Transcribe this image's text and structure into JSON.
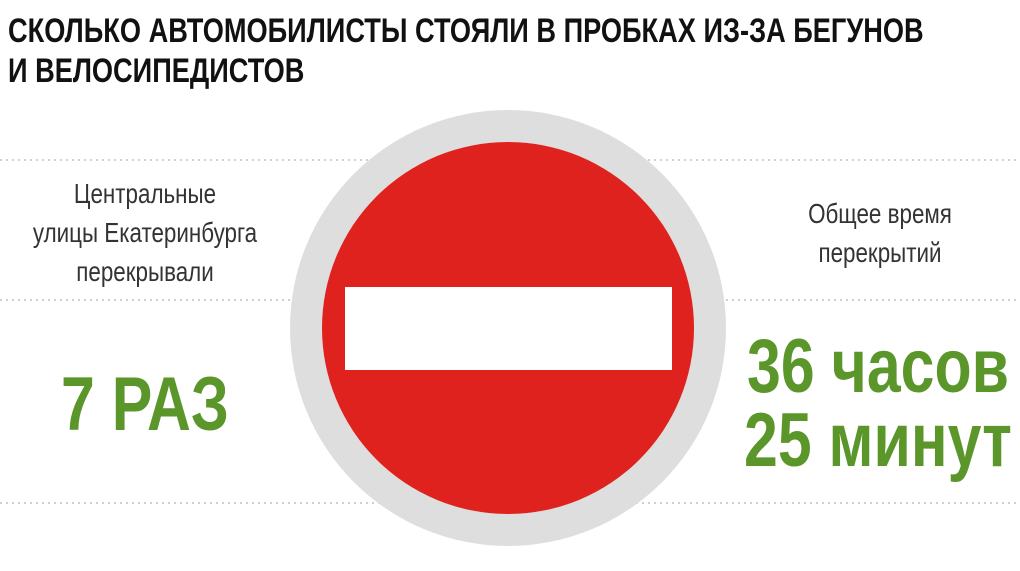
{
  "header": {
    "title": [
      "СКОЛЬКО АВТОМОБИЛИСТЫ СТОЯЛИ В ПРОБКАХ ИЗ-ЗА БЕГУНОВ",
      "И ВЕЛОСИПЕДИСТОВ"
    ]
  },
  "left": {
    "label": [
      "Центральные",
      "улицы Екатеринбурга",
      "перекрывали"
    ],
    "value": [
      "7 РАЗ"
    ]
  },
  "right": {
    "label": [
      "Общее время",
      "перекрытий"
    ],
    "value": [
      "36 часов",
      "25 минут"
    ]
  }
}
